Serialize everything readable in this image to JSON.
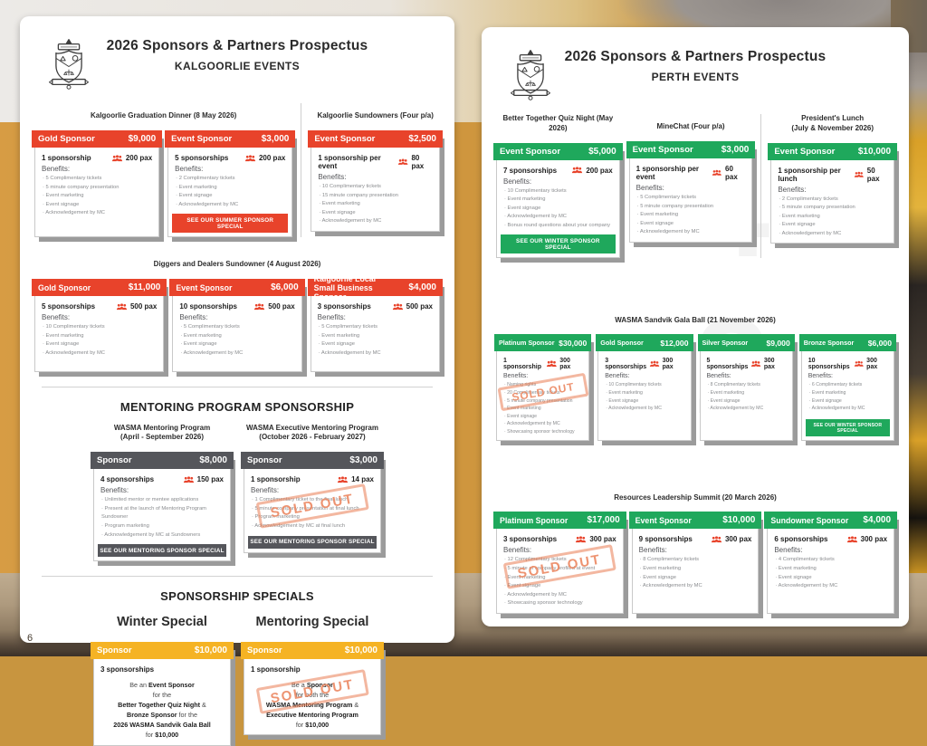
{
  "labels": {
    "benefits": "Benefits:",
    "sold_out": "SOLD OUT"
  },
  "colors": {
    "red": "#E8432B",
    "green": "#1FA85C",
    "dark_gray": "#55565B",
    "yellow": "#F5B324",
    "stamp_orange": "#E97B52"
  },
  "page_footer": {
    "page_number": "6"
  },
  "pages": [
    {
      "title": "2026 Sponsors & Partners Prospectus",
      "subtitle": "KALGOORLIE EVENTS",
      "theme": "red",
      "rows": [
        {
          "kind": "events",
          "sections": [
            {
              "heading": [
                "Kalgoorlie Graduation Dinner (8 May 2026)"
              ],
              "cards": [
                {
                  "name": "Gold Sponsor",
                  "price": "$9,000",
                  "qty": "1 sponsorship",
                  "pax": "200 pax",
                  "benefits": [
                    "5 Complimentary tickets",
                    "5 minute company presentation",
                    "Event marketing",
                    "Event signage",
                    "Acknowledgement by MC"
                  ]
                },
                {
                  "name": "Event Sponsor",
                  "price": "$3,000",
                  "qty": "5 sponsorships",
                  "pax": "200 pax",
                  "benefits": [
                    "2 Complimentary tickets",
                    "Event marketing",
                    "Event signage",
                    "Acknowledgement by MC"
                  ],
                  "footer": "SEE OUR SUMMER SPONSOR SPECIAL"
                }
              ]
            },
            {
              "heading": [
                "Kalgoorlie Sundowners (Four p/a)"
              ],
              "cards": [
                {
                  "name": "Event Sponsor",
                  "price": "$2,500",
                  "qty": "1 sponsorship per event",
                  "pax": "80 pax",
                  "benefits": [
                    "10 Complimentary tickets",
                    "15 minute company presentation",
                    "Event marketing",
                    "Event signage",
                    "Acknowledgement by MC"
                  ]
                }
              ]
            }
          ]
        },
        {
          "kind": "events",
          "sections": [
            {
              "heading": [
                "Diggers and Dealers Sundowner (4 August 2026)"
              ],
              "cards": [
                {
                  "name": "Gold Sponsor",
                  "price": "$11,000",
                  "qty": "5 sponsorships",
                  "pax": "500 pax",
                  "benefits": [
                    "10 Complimentary tickets",
                    "Event marketing",
                    "Event signage",
                    "Acknowledgement by MC"
                  ]
                },
                {
                  "name": "Event Sponsor",
                  "price": "$6,000",
                  "qty": "10 sponsorships",
                  "pax": "500 pax",
                  "benefits": [
                    "5 Complimentary tickets",
                    "Event marketing",
                    "Event signage",
                    "Acknowledgement by MC"
                  ]
                },
                {
                  "name": "Kalgoorlie Local Small Business Sponsor",
                  "price": "$4,000",
                  "qty": "3 sponsorships",
                  "pax": "500 pax",
                  "benefits": [
                    "5 Complimentary tickets",
                    "Event marketing",
                    "Event signage",
                    "Acknowledgement by MC"
                  ]
                }
              ]
            }
          ]
        },
        {
          "kind": "program",
          "title": "MENTORING PROGRAM SPONSORSHIP",
          "sections": [
            {
              "heading": [
                "WASMA Mentoring Program",
                "(April - September 2026)"
              ],
              "cards": [
                {
                  "name": "Sponsor",
                  "price": "$8,000",
                  "theme": "dark",
                  "qty": "4 sponsorships",
                  "pax": "150 pax",
                  "benefits": [
                    "Unlimited mentor or mentee applications",
                    "Present at the launch of Mentoring Program Sundowner",
                    "Program marketing",
                    "Acknowledgement by MC at Sundowners"
                  ],
                  "footer": "SEE OUR MENTORING SPONSOR SPECIAL"
                }
              ]
            },
            {
              "heading": [
                "WASMA Executive Mentoring Program",
                "(October 2026 - February 2027)"
              ],
              "cards": [
                {
                  "name": "Sponsor",
                  "price": "$3,000",
                  "theme": "dark",
                  "qty": "1 sponsorship",
                  "pax": "14 pax",
                  "benefits": [
                    "1 Complimentary ticket to the final lunch",
                    "5 minute company presentation at final lunch",
                    "Program marketing",
                    "Acknowledgement by MC at final lunch"
                  ],
                  "footer": "SEE OUR MENTORING SPONSOR SPECIAL",
                  "sold_out": true
                }
              ]
            }
          ]
        },
        {
          "kind": "specials",
          "title": "SPONSORSHIP SPECIALS",
          "sections": [
            {
              "heading": [
                "Winter Special"
              ],
              "cards": [
                {
                  "name": "Sponsor",
                  "price": "$10,000",
                  "theme": "yellow",
                  "qty": "3 sponsorships",
                  "body": [
                    "Be an **Event Sponsor**",
                    "for the",
                    "**Better Together Quiz Night** &",
                    "**Bronze Sponsor** for the",
                    "**2026 WASMA Sandvik Gala Ball**",
                    "for **$10,000**"
                  ]
                }
              ]
            },
            {
              "heading": [
                "Mentoring Special"
              ],
              "cards": [
                {
                  "name": "Sponsor",
                  "price": "$10,000",
                  "theme": "yellow",
                  "qty": "1 sponsorship",
                  "body": [
                    "Be a **Sponsor**",
                    "for both the",
                    "**WASMA Mentoring Program** &",
                    "**Executive Mentoring Program**",
                    "for **$10,000**"
                  ],
                  "sold_out": true
                }
              ]
            }
          ]
        }
      ]
    },
    {
      "title": "2026 Sponsors & Partners Prospectus",
      "subtitle": "PERTH EVENTS",
      "theme": "green",
      "watermark": "4 2",
      "rows": [
        {
          "kind": "events",
          "sections": [
            {
              "heading": [
                "Better Together Quiz Night (May 2026)"
              ],
              "cards": [
                {
                  "name": "Event Sponsor",
                  "price": "$5,000",
                  "qty": "7 sponsorships",
                  "pax": "200 pax",
                  "benefits": [
                    "10 Complimentary tickets",
                    "Event marketing",
                    "Event signage",
                    "Acknowledgement by MC",
                    "Bonus round questions about your company"
                  ],
                  "footer": "SEE OUR WINTER SPONSOR SPECIAL"
                }
              ]
            },
            {
              "heading": [
                "MineChat (Four p/a)"
              ],
              "cards": [
                {
                  "name": "Event Sponsor",
                  "price": "$3,000",
                  "qty": "1 sponsorship per event",
                  "pax": "60 pax",
                  "benefits": [
                    "5 Complimentary tickets",
                    "5 minute company presentation",
                    "Event marketing",
                    "Event signage",
                    "Acknowledgement by MC"
                  ]
                }
              ]
            },
            {
              "heading": [
                "President's Lunch",
                "(July & November 2026)"
              ],
              "cards": [
                {
                  "name": "Event Sponsor",
                  "price": "$10,000",
                  "qty": "1 sponsorship per lunch",
                  "pax": "50 pax",
                  "benefits": [
                    "2 Complimentary tickets",
                    "5 minute company presentation",
                    "Event marketing",
                    "Event signage",
                    "Acknowledgement by MC"
                  ]
                }
              ]
            }
          ]
        },
        {
          "kind": "events",
          "sections": [
            {
              "heading": [
                "WASMA Sandvik Gala Ball (21 November 2026)"
              ],
              "cards": [
                {
                  "name": "Platinum Sponsor",
                  "price": "$30,000",
                  "qty": "1 sponsorship",
                  "pax": "300 pax",
                  "benefits": [
                    "Naming rights",
                    "20 Complimentary tickets",
                    "5 minute company presentation",
                    "Event marketing",
                    "Event signage",
                    "Acknowledgement by MC",
                    "Showcasing sponsor technology"
                  ],
                  "sold_out": true
                },
                {
                  "name": "Gold Sponsor",
                  "price": "$12,000",
                  "qty": "3 sponsorships",
                  "pax": "300 pax",
                  "benefits": [
                    "10 Complimentary tickets",
                    "Event marketing",
                    "Event signage",
                    "Acknowledgement by MC"
                  ]
                },
                {
                  "name": "Silver Sponsor",
                  "price": "$9,000",
                  "qty": "5 sponsorships",
                  "pax": "300 pax",
                  "benefits": [
                    "8 Complimentary tickets",
                    "Event marketing",
                    "Event signage",
                    "Acknowledgement by MC"
                  ]
                },
                {
                  "name": "Bronze Sponsor",
                  "price": "$6,000",
                  "qty": "10 sponsorships",
                  "pax": "300 pax",
                  "benefits": [
                    "6 Complimentary tickets",
                    "Event marketing",
                    "Event signage",
                    "Acknowledgement by MC"
                  ],
                  "footer": "SEE OUR WINTER SPONSOR SPECIAL"
                }
              ]
            }
          ]
        },
        {
          "kind": "events",
          "sections": [
            {
              "heading": [
                "Resources Leadership Summit (20 March 2026)"
              ],
              "cards": [
                {
                  "name": "Platinum Sponsor",
                  "price": "$17,000",
                  "qty": "3 sponsorships",
                  "pax": "300 pax",
                  "benefits": [
                    "12 Complimentary tickets",
                    "5 minute of company profiled at event",
                    "Event marketing",
                    "Event signage",
                    "Acknowledgement by MC",
                    "Showcasing sponsor technology"
                  ],
                  "sold_out": true
                },
                {
                  "name": "Event Sponsor",
                  "price": "$10,000",
                  "qty": "9 sponsorships",
                  "pax": "300 pax",
                  "benefits": [
                    "8 Complimentary tickets",
                    "Event marketing",
                    "Event signage",
                    "Acknowledgement by MC"
                  ]
                },
                {
                  "name": "Sundowner Sponsor",
                  "price": "$4,000",
                  "qty": "6 sponsorships",
                  "pax": "300 pax",
                  "benefits": [
                    "4 Complimentary tickets",
                    "Event marketing",
                    "Event signage",
                    "Acknowledgement by MC"
                  ]
                }
              ]
            }
          ]
        }
      ]
    }
  ]
}
